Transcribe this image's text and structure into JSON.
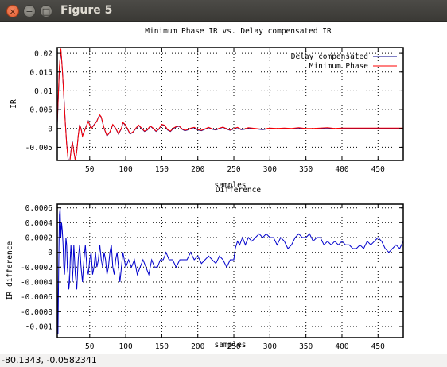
{
  "window": {
    "title": "Figure 5",
    "close_glyph": "×",
    "minimize_glyph": "−",
    "maximize_glyph": "□"
  },
  "status": {
    "coords": "-80.1343, -0.0582341"
  },
  "chart_data": [
    {
      "type": "line",
      "title": "Minimum Phase IR vs. Delay compensated IR",
      "xlabel": "samples",
      "ylabel": "IR",
      "xlim": [
        5,
        485
      ],
      "ylim": [
        -0.0085,
        0.0215
      ],
      "xticks": [
        50,
        100,
        150,
        200,
        250,
        300,
        350,
        400,
        450
      ],
      "yticks": [
        -0.005,
        0,
        0.005,
        0.01,
        0.015,
        0.02
      ],
      "ytick_labels": [
        "-0.005",
        "0",
        "0.005",
        "0.01",
        "0.015",
        "0.02"
      ],
      "grid": true,
      "legend_position": "top-right",
      "series": [
        {
          "name": "Delay compensated",
          "color": "#00008b",
          "x": [
            5,
            8,
            10,
            12,
            14,
            16,
            18,
            20,
            22,
            24,
            26,
            28,
            30,
            32,
            34,
            36,
            38,
            40,
            44,
            48,
            52,
            56,
            60,
            62,
            64,
            66,
            70,
            74,
            78,
            82,
            86,
            90,
            94,
            96,
            98,
            102,
            106,
            110,
            114,
            118,
            122,
            126,
            130,
            134,
            138,
            142,
            146,
            150,
            154,
            158,
            162,
            166,
            170,
            174,
            178,
            182,
            186,
            190,
            195,
            200,
            205,
            210,
            215,
            220,
            225,
            230,
            235,
            240,
            245,
            250,
            255,
            260,
            265,
            270,
            280,
            290,
            300,
            310,
            320,
            330,
            340,
            350,
            360,
            370,
            380,
            390,
            400,
            420,
            440,
            460,
            485
          ],
          "y": [
            0.001,
            0.016,
            0.021,
            0.016,
            0.009,
            0.002,
            -0.004,
            -0.008,
            -0.0095,
            -0.006,
            -0.0035,
            -0.006,
            -0.0085,
            -0.006,
            -0.002,
            0.001,
            0.0,
            -0.002,
            0.0,
            0.002,
            0.0,
            0.001,
            0.002,
            0.003,
            0.0035,
            0.003,
            0.0,
            -0.002,
            -0.001,
            0.001,
            0.0,
            -0.0015,
            0.0,
            0.0015,
            0.0012,
            0.0,
            -0.0015,
            -0.001,
            0.0,
            0.0008,
            0.0,
            -0.0008,
            -0.0004,
            0.0006,
            0.0,
            -0.0008,
            -0.0002,
            0.001,
            0.0008,
            -0.0004,
            -0.0008,
            0.0,
            0.0004,
            0.0006,
            -0.0002,
            -0.0006,
            -0.0004,
            0.0,
            0.0002,
            -0.0004,
            -0.0006,
            -0.0002,
            0.0002,
            -0.0002,
            -0.0004,
            0.0,
            0.0003,
            -0.0002,
            -0.0005,
            -0.0001,
            0.0002,
            -0.0003,
            -0.0002,
            0.0001,
            -0.0001,
            -0.0003,
            0.0,
            -0.0001,
            0.0,
            -0.0001,
            0.0001,
            -0.0001,
            -0.0001,
            0.0,
            0.0001,
            -0.0001,
            0.0,
            0.0,
            0.0,
            0.0,
            0.0
          ]
        },
        {
          "name": "Minimum Phase",
          "color": "#ff0000",
          "x": [
            5,
            8,
            10,
            12,
            14,
            16,
            18,
            20,
            22,
            24,
            26,
            28,
            30,
            32,
            34,
            36,
            38,
            40,
            44,
            48,
            52,
            56,
            60,
            62,
            64,
            66,
            70,
            74,
            78,
            82,
            86,
            90,
            94,
            96,
            98,
            102,
            106,
            110,
            114,
            118,
            122,
            126,
            130,
            134,
            138,
            142,
            146,
            150,
            154,
            158,
            162,
            166,
            170,
            174,
            178,
            182,
            186,
            190,
            195,
            200,
            205,
            210,
            215,
            220,
            225,
            230,
            235,
            240,
            245,
            250,
            255,
            260,
            265,
            270,
            280,
            290,
            300,
            310,
            320,
            330,
            340,
            350,
            360,
            370,
            380,
            390,
            400,
            420,
            440,
            460,
            485
          ],
          "y": [
            0.0015,
            0.0165,
            0.0212,
            0.016,
            0.0088,
            0.0018,
            -0.0042,
            -0.0082,
            -0.0096,
            -0.0062,
            -0.0036,
            -0.0061,
            -0.0086,
            -0.0061,
            -0.0021,
            0.0009,
            -0.0001,
            -0.0021,
            -0.0001,
            0.0019,
            -0.0001,
            0.0009,
            0.0019,
            0.0029,
            0.0036,
            0.0031,
            0.0001,
            -0.0019,
            -0.0009,
            0.0011,
            0.0001,
            -0.0014,
            0.0001,
            0.0016,
            0.0013,
            0.0001,
            -0.0014,
            -0.0009,
            0.0001,
            0.0009,
            0.0001,
            -0.0007,
            -0.0003,
            0.0007,
            0.0001,
            -0.0007,
            -0.0001,
            0.0011,
            0.0009,
            -0.0003,
            -0.0007,
            0.0001,
            0.0005,
            0.0007,
            -0.0001,
            -0.0005,
            -0.0003,
            0.0001,
            0.0003,
            -0.0003,
            -0.0005,
            -0.0001,
            0.0003,
            -0.0001,
            -0.0003,
            0.0001,
            0.0004,
            -0.0001,
            -0.0004,
            0.0,
            0.0003,
            -0.0002,
            -0.0001,
            0.0002,
            0.0,
            -0.0002,
            0.0001,
            0.0,
            0.0001,
            0.0,
            0.0002,
            0.0,
            0.0,
            0.0001,
            0.0002,
            0.0,
            0.0001,
            0.0001,
            0.0001,
            0.0001,
            0.0001
          ]
        }
      ]
    },
    {
      "type": "line",
      "title": "Difference",
      "xlabel": "samples",
      "ylabel": "IR difference",
      "xlim": [
        5,
        485
      ],
      "ylim": [
        -0.00115,
        0.00065
      ],
      "xticks": [
        50,
        100,
        150,
        200,
        250,
        300,
        350,
        400,
        450
      ],
      "yticks": [
        -0.001,
        -0.0008,
        -0.0006,
        -0.0004,
        -0.0002,
        0,
        0.0002,
        0.0004,
        0.0006
      ],
      "ytick_labels": [
        "-0.001",
        "-0.0008",
        "-0.0006",
        "-0.0004",
        "-0.0002",
        "0",
        "0.0002",
        "0.0004",
        "0.0006"
      ],
      "grid": true,
      "series": [
        {
          "color": "#0000cc",
          "x": [
            5,
            6,
            7,
            8,
            9,
            10,
            11,
            12,
            13,
            14,
            15,
            16,
            17,
            18,
            19,
            20,
            21,
            22,
            23,
            24,
            25,
            26,
            27,
            28,
            30,
            32,
            34,
            36,
            38,
            40,
            42,
            44,
            46,
            48,
            50,
            52,
            54,
            56,
            58,
            60,
            62,
            64,
            66,
            68,
            70,
            72,
            74,
            76,
            78,
            80,
            82,
            84,
            86,
            88,
            90,
            92,
            94,
            96,
            98,
            100,
            104,
            108,
            112,
            116,
            120,
            124,
            128,
            132,
            136,
            140,
            144,
            148,
            152,
            156,
            160,
            165,
            170,
            175,
            180,
            185,
            190,
            195,
            200,
            205,
            210,
            215,
            220,
            225,
            230,
            235,
            240,
            245,
            250,
            252,
            255,
            258,
            262,
            266,
            270,
            275,
            280,
            285,
            290,
            295,
            300,
            305,
            310,
            315,
            320,
            325,
            330,
            335,
            340,
            345,
            350,
            355,
            360,
            365,
            370,
            375,
            380,
            385,
            390,
            395,
            400,
            405,
            410,
            415,
            420,
            425,
            430,
            435,
            440,
            445,
            450,
            455,
            460,
            465,
            470,
            475,
            480,
            485
          ],
          "y": [
            -0.0003,
            -0.0011,
            -0.0002,
            0.0005,
            0.0006,
            0.0002,
            0.0004,
            0.0003,
            0.0001,
            -0.0002,
            -0.0003,
            -0.0001,
            0.0002,
            0.0001,
            -0.0002,
            -0.0003,
            -0.0005,
            -0.0004,
            -0.0001,
            0.0001,
            -0.0001,
            -0.0004,
            -0.0002,
            0.0001,
            -0.0003,
            -0.0005,
            -0.0001,
            0.0001,
            -0.0002,
            -0.0004,
            -0.0001,
            0.0001,
            -0.0002,
            -0.0003,
            -0.0001,
            0.0,
            -0.0003,
            -0.0002,
            0.0,
            -0.0002,
            -0.0001,
            0.0001,
            -0.0001,
            -0.0002,
            0.0,
            -0.0001,
            -0.0003,
            -0.0002,
            0.0,
            0.0001,
            -0.0002,
            -0.0003,
            -0.0001,
            0.0,
            -0.0002,
            -0.0004,
            -0.0002,
            0.0,
            -0.0001,
            -0.0002,
            -0.0001,
            -0.0002,
            -0.0001,
            -0.0003,
            -0.0002,
            -0.0001,
            -0.0002,
            -0.0003,
            -0.0001,
            -0.0002,
            -0.0002,
            -0.0001,
            -0.0001,
            0.0,
            -0.0001,
            -0.0001,
            -0.0002,
            -0.0001,
            -0.0001,
            -0.0001,
            0.0,
            -0.0001,
            -5e-05,
            -0.00015,
            -0.0001,
            -5e-05,
            -0.0001,
            -0.00015,
            -5e-05,
            -0.0001,
            -0.0002,
            -0.0001,
            -0.0001,
            5e-05,
            0.00015,
            0.0001,
            0.0002,
            0.0001,
            0.0002,
            0.00015,
            0.0002,
            0.00025,
            0.0002,
            0.00025,
            0.0002,
            0.0002,
            0.0001,
            0.0002,
            0.00015,
            5e-05,
            0.0001,
            0.0002,
            0.00025,
            0.0002,
            0.0002,
            0.00025,
            0.00015,
            0.0002,
            0.0002,
            0.0001,
            0.00015,
            0.0001,
            0.00015,
            0.0001,
            0.00015,
            0.0001,
            0.0001,
            5e-05,
            5e-05,
            0.0001,
            5e-05,
            0.00015,
            0.0001,
            0.00015,
            0.0002,
            0.00015,
            5e-05,
            0.0,
            5e-05,
            0.0001,
            5e-05,
            0.00015
          ]
        }
      ]
    }
  ]
}
